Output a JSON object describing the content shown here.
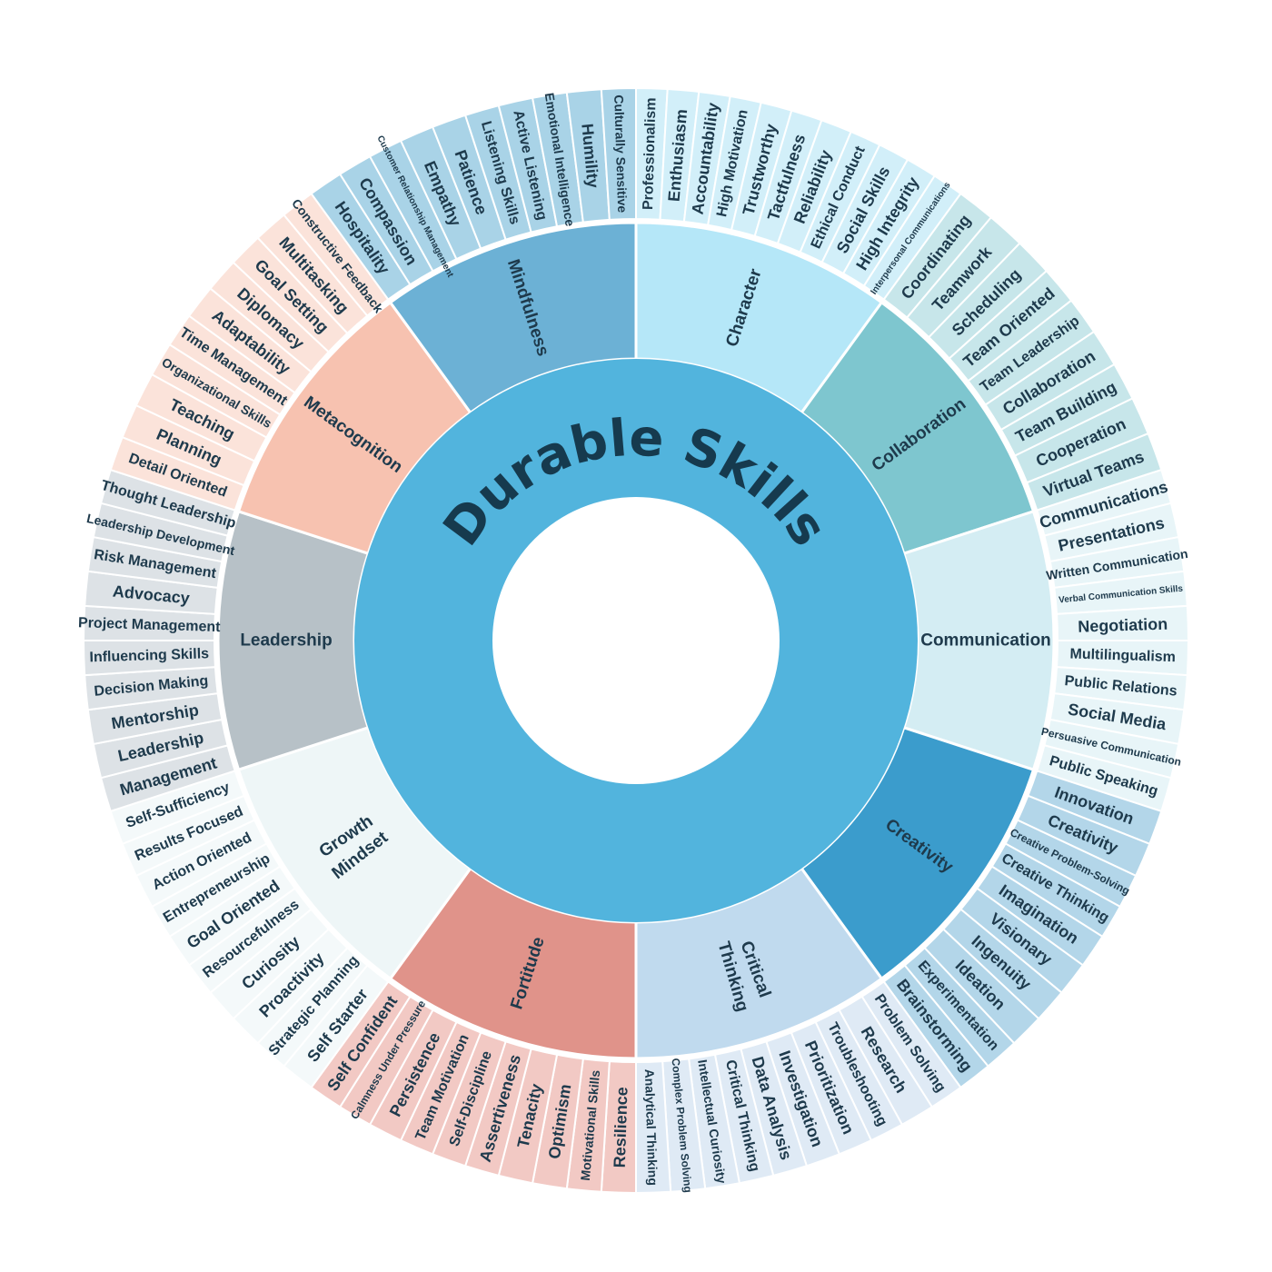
{
  "title": "Durable Skills",
  "colors": {
    "center_ring": "#52b4dd",
    "label_text": "#1e3a4c",
    "title_text": "#163a4e",
    "separator": "#ffffff"
  },
  "categories": [
    {
      "name": "Character",
      "lines": [
        "Character"
      ],
      "color": "#b5e7f8",
      "skill_color": "#d2eff9",
      "skills": [
        "Professionalism",
        "Enthusiasm",
        "Accountability",
        "High Motivation",
        "Trustworthy",
        "Tactfulness",
        "Reliability",
        "Ethical Conduct",
        "Social Skills",
        "High Integrity",
        "Interpersonal Communications"
      ]
    },
    {
      "name": "Collaboration",
      "lines": [
        "Collaboration"
      ],
      "color": "#7ec6cf",
      "skill_color": "#c7e6ea",
      "skills": [
        "Coordinating",
        "Teamwork",
        "Scheduling",
        "Team Oriented",
        "Team Leadership",
        "Collaboration",
        "Team Building",
        "Cooperation",
        "Virtual Teams"
      ]
    },
    {
      "name": "Communication",
      "lines": [
        "Communication"
      ],
      "color": "#d4edf3",
      "skill_color": "#e8f5f8",
      "skills": [
        "Communications",
        "Presentations",
        "Written Communication",
        "Verbal Communication Skills",
        "Negotiation",
        "Multilingualism",
        "Public Relations",
        "Social Media",
        "Persuasive Communication",
        "Public Speaking"
      ]
    },
    {
      "name": "Creativity",
      "lines": [
        "Creativity"
      ],
      "color": "#3b9ccc",
      "skill_color": "#b3d6e9",
      "skills": [
        "Innovation",
        "Creativity",
        "Creative Problem-Solving",
        "Creative Thinking",
        "Imagination",
        "Visionary",
        "Ingenuity",
        "Ideation",
        "Experimentation",
        "Brainstorming"
      ]
    },
    {
      "name": "Critical Thinking",
      "lines": [
        "Critical",
        "Thinking"
      ],
      "color": "#c0daee",
      "skill_color": "#dfeaf5",
      "skills": [
        "Problem Solving",
        "Research",
        "Troubleshooting",
        "Prioritization",
        "Investigation",
        "Data Analysis",
        "Critical Thinking",
        "Intellectual Curiosity",
        "Complex Problem Solving",
        "Analytical Thinking"
      ]
    },
    {
      "name": "Fortitude",
      "lines": [
        "Fortitude"
      ],
      "color": "#e0938a",
      "skill_color": "#f2c9c4",
      "skills": [
        "Resilience",
        "Motivational Skills",
        "Optimism",
        "Tenacity",
        "Assertiveness",
        "Self-Discipline",
        "Team Motivation",
        "Persistence",
        "Calmness Under Pressure",
        "Self Confident"
      ]
    },
    {
      "name": "Growth Mindset",
      "lines": [
        "Growth",
        "Mindset"
      ],
      "color": "#eef6f7",
      "skill_color": "#f4f9fa",
      "skills": [
        "Self Starter",
        "Strategic Planning",
        "Proactivity",
        "Curiosity",
        "Resourcefulness",
        "Goal Oriented",
        "Entrepreneurship",
        "Action Oriented",
        "Results Focused",
        "Self-Sufficiency"
      ]
    },
    {
      "name": "Leadership",
      "lines": [
        "Leadership"
      ],
      "color": "#b7c1c7",
      "skill_color": "#dde2e6",
      "skills": [
        "Management",
        "Leadership",
        "Mentorship",
        "Decision Making",
        "Influencing Skills",
        "Project Management",
        "Advocacy",
        "Risk Management",
        "Leadership Development",
        "Thought Leadership"
      ]
    },
    {
      "name": "Metacognition",
      "lines": [
        "Metacognition"
      ],
      "color": "#f7c2b0",
      "skill_color": "#fbe3da",
      "skills": [
        "Detail Oriented",
        "Planning",
        "Teaching",
        "Organizational Skills",
        "Time Management",
        "Adaptability",
        "Diplomacy",
        "Goal Setting",
        "Multitasking",
        "Constructive Feedback"
      ]
    },
    {
      "name": "Mindfulness",
      "lines": [
        "Mindfulness"
      ],
      "color": "#6cb1d5",
      "skill_color": "#a9d3e7",
      "skills": [
        "Hospitality",
        "Compassion",
        "Customer Relationship Management",
        "Empathy",
        "Patience",
        "Listening Skills",
        "Active Listening",
        "Emotional Intelligence",
        "Humility",
        "Culturally Sensitive"
      ]
    }
  ]
}
